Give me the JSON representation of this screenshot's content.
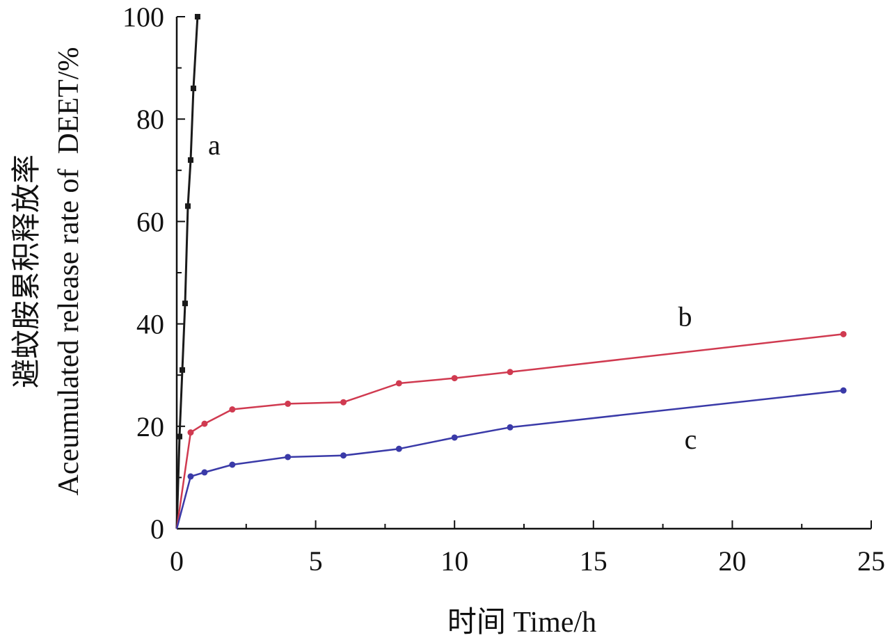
{
  "chart_data": {
    "type": "line",
    "title": "",
    "xlabel": "时间 Time/h",
    "ylabel_cn": "避蚊胺累积释放率",
    "ylabel_en": "Aceumulated release rate of  DEET/%",
    "xlim": [
      0,
      25
    ],
    "ylim": [
      0,
      100
    ],
    "xticks": [
      0,
      5,
      10,
      15,
      20,
      25
    ],
    "yticks": [
      0,
      20,
      40,
      60,
      80,
      100
    ],
    "grid": false,
    "legend": "none",
    "series": [
      {
        "name": "a",
        "color": "#1a1a1a",
        "marker": "square",
        "x": [
          0,
          0.1,
          0.2,
          0.3,
          0.4,
          0.5,
          0.6,
          0.75
        ],
        "y": [
          0,
          18,
          31,
          44,
          63,
          72,
          86,
          100
        ]
      },
      {
        "name": "b",
        "color": "#d03a50",
        "marker": "circle",
        "x": [
          0,
          0.5,
          1,
          2,
          4,
          6,
          8,
          10,
          12,
          24
        ],
        "y": [
          0,
          18.8,
          20.5,
          23.3,
          24.4,
          24.7,
          28.4,
          29.4,
          30.6,
          38
        ]
      },
      {
        "name": "c",
        "color": "#3a3aa8",
        "marker": "circle",
        "x": [
          0,
          0.5,
          1,
          2,
          4,
          6,
          8,
          10,
          12,
          24
        ],
        "y": [
          0,
          10.2,
          11,
          12.5,
          14,
          14.3,
          15.6,
          17.8,
          19.8,
          27
        ]
      }
    ],
    "annotations": [
      {
        "text": "a",
        "x": 1.35,
        "y": 75
      },
      {
        "text": "b",
        "x": 18.3,
        "y": 41.5
      },
      {
        "text": "c",
        "x": 18.5,
        "y": 17.5
      }
    ]
  }
}
